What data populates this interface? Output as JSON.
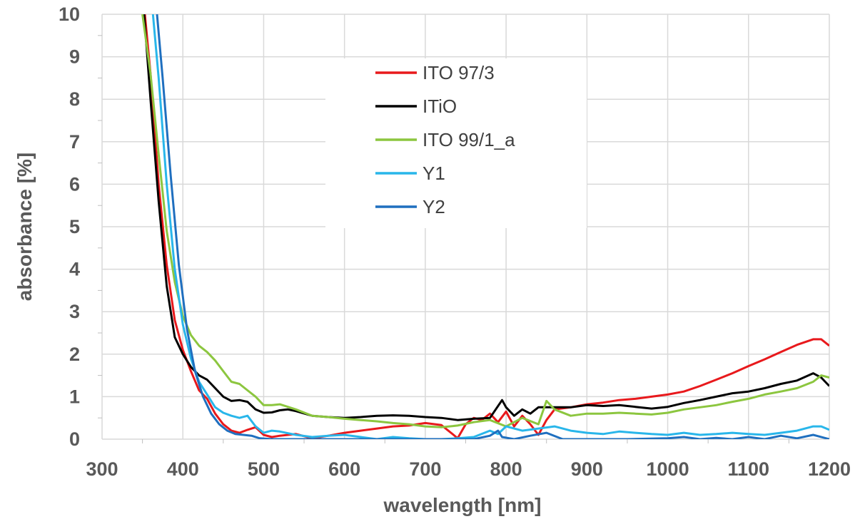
{
  "chart_data": {
    "type": "line",
    "title": "",
    "xlabel": "wavelength [nm]",
    "ylabel": "absorbance [%]",
    "xlim": [
      300,
      1200
    ],
    "ylim": [
      0,
      10
    ],
    "x_ticks": [
      "300",
      "400",
      "500",
      "600",
      "700",
      "800",
      "900",
      "1000",
      "1100",
      "1200"
    ],
    "y_ticks": [
      "0",
      "1",
      "2",
      "3",
      "4",
      "5",
      "6",
      "7",
      "8",
      "9",
      "10"
    ],
    "grid": true,
    "legend_position": "top-center",
    "series": [
      {
        "name": "ITO 97/3",
        "color": "#e8191c",
        "points": [
          [
            353,
            10
          ],
          [
            360,
            8.6
          ],
          [
            370,
            6.0
          ],
          [
            380,
            4.1
          ],
          [
            390,
            2.8
          ],
          [
            400,
            2.1
          ],
          [
            410,
            1.6
          ],
          [
            420,
            1.15
          ],
          [
            430,
            0.95
          ],
          [
            440,
            0.6
          ],
          [
            450,
            0.35
          ],
          [
            460,
            0.2
          ],
          [
            470,
            0.15
          ],
          [
            480,
            0.22
          ],
          [
            490,
            0.28
          ],
          [
            500,
            0.1
          ],
          [
            510,
            0.05
          ],
          [
            520,
            0.08
          ],
          [
            540,
            0.12
          ],
          [
            560,
            0.02
          ],
          [
            580,
            0.08
          ],
          [
            600,
            0.15
          ],
          [
            620,
            0.2
          ],
          [
            640,
            0.25
          ],
          [
            660,
            0.3
          ],
          [
            680,
            0.32
          ],
          [
            700,
            0.38
          ],
          [
            720,
            0.33
          ],
          [
            735,
            0.1
          ],
          [
            740,
            0.02
          ],
          [
            750,
            0.35
          ],
          [
            760,
            0.5
          ],
          [
            770,
            0.45
          ],
          [
            780,
            0.6
          ],
          [
            790,
            0.4
          ],
          [
            800,
            0.65
          ],
          [
            810,
            0.3
          ],
          [
            820,
            0.55
          ],
          [
            830,
            0.35
          ],
          [
            840,
            0.1
          ],
          [
            850,
            0.45
          ],
          [
            860,
            0.7
          ],
          [
            880,
            0.75
          ],
          [
            900,
            0.82
          ],
          [
            920,
            0.86
          ],
          [
            940,
            0.92
          ],
          [
            960,
            0.95
          ],
          [
            980,
            1.0
          ],
          [
            1000,
            1.05
          ],
          [
            1020,
            1.12
          ],
          [
            1040,
            1.25
          ],
          [
            1060,
            1.4
          ],
          [
            1080,
            1.55
          ],
          [
            1100,
            1.72
          ],
          [
            1120,
            1.88
          ],
          [
            1140,
            2.05
          ],
          [
            1160,
            2.22
          ],
          [
            1180,
            2.35
          ],
          [
            1190,
            2.35
          ],
          [
            1200,
            2.2
          ]
        ]
      },
      {
        "name": "ITiO",
        "color": "#000000",
        "points": [
          [
            352,
            10
          ],
          [
            360,
            8.0
          ],
          [
            370,
            5.6
          ],
          [
            380,
            3.6
          ],
          [
            390,
            2.4
          ],
          [
            400,
            2.0
          ],
          [
            410,
            1.7
          ],
          [
            420,
            1.5
          ],
          [
            430,
            1.4
          ],
          [
            440,
            1.2
          ],
          [
            450,
            1.0
          ],
          [
            460,
            0.9
          ],
          [
            470,
            0.92
          ],
          [
            480,
            0.88
          ],
          [
            490,
            0.7
          ],
          [
            500,
            0.62
          ],
          [
            510,
            0.63
          ],
          [
            520,
            0.68
          ],
          [
            530,
            0.7
          ],
          [
            540,
            0.66
          ],
          [
            560,
            0.55
          ],
          [
            580,
            0.52
          ],
          [
            600,
            0.5
          ],
          [
            620,
            0.52
          ],
          [
            640,
            0.55
          ],
          [
            660,
            0.56
          ],
          [
            680,
            0.55
          ],
          [
            700,
            0.52
          ],
          [
            720,
            0.5
          ],
          [
            740,
            0.45
          ],
          [
            760,
            0.48
          ],
          [
            780,
            0.5
          ],
          [
            795,
            0.92
          ],
          [
            800,
            0.75
          ],
          [
            810,
            0.55
          ],
          [
            820,
            0.7
          ],
          [
            830,
            0.6
          ],
          [
            840,
            0.75
          ],
          [
            860,
            0.75
          ],
          [
            880,
            0.75
          ],
          [
            900,
            0.8
          ],
          [
            920,
            0.78
          ],
          [
            940,
            0.8
          ],
          [
            960,
            0.76
          ],
          [
            980,
            0.72
          ],
          [
            1000,
            0.76
          ],
          [
            1020,
            0.85
          ],
          [
            1040,
            0.92
          ],
          [
            1060,
            1.0
          ],
          [
            1080,
            1.08
          ],
          [
            1100,
            1.12
          ],
          [
            1120,
            1.2
          ],
          [
            1140,
            1.3
          ],
          [
            1160,
            1.38
          ],
          [
            1180,
            1.55
          ],
          [
            1190,
            1.45
          ],
          [
            1200,
            1.25
          ]
        ]
      },
      {
        "name": "ITO 99/1_a",
        "color": "#8cc63f",
        "points": [
          [
            350,
            10
          ],
          [
            360,
            8.6
          ],
          [
            370,
            6.7
          ],
          [
            380,
            4.9
          ],
          [
            390,
            3.7
          ],
          [
            400,
            2.9
          ],
          [
            410,
            2.45
          ],
          [
            420,
            2.2
          ],
          [
            430,
            2.05
          ],
          [
            440,
            1.85
          ],
          [
            450,
            1.6
          ],
          [
            460,
            1.35
          ],
          [
            470,
            1.3
          ],
          [
            480,
            1.15
          ],
          [
            490,
            1.0
          ],
          [
            500,
            0.8
          ],
          [
            510,
            0.8
          ],
          [
            520,
            0.82
          ],
          [
            540,
            0.7
          ],
          [
            560,
            0.55
          ],
          [
            580,
            0.52
          ],
          [
            600,
            0.48
          ],
          [
            620,
            0.45
          ],
          [
            640,
            0.42
          ],
          [
            660,
            0.38
          ],
          [
            680,
            0.35
          ],
          [
            700,
            0.3
          ],
          [
            720,
            0.28
          ],
          [
            740,
            0.32
          ],
          [
            760,
            0.4
          ],
          [
            780,
            0.45
          ],
          [
            800,
            0.3
          ],
          [
            820,
            0.5
          ],
          [
            840,
            0.35
          ],
          [
            850,
            0.9
          ],
          [
            860,
            0.7
          ],
          [
            880,
            0.55
          ],
          [
            900,
            0.6
          ],
          [
            920,
            0.6
          ],
          [
            940,
            0.62
          ],
          [
            960,
            0.6
          ],
          [
            980,
            0.58
          ],
          [
            1000,
            0.62
          ],
          [
            1020,
            0.7
          ],
          [
            1040,
            0.75
          ],
          [
            1060,
            0.8
          ],
          [
            1080,
            0.88
          ],
          [
            1100,
            0.95
          ],
          [
            1120,
            1.05
          ],
          [
            1140,
            1.12
          ],
          [
            1160,
            1.2
          ],
          [
            1180,
            1.35
          ],
          [
            1190,
            1.5
          ],
          [
            1200,
            1.45
          ]
        ]
      },
      {
        "name": "Y1",
        "color": "#29b6ea",
        "points": [
          [
            363,
            10
          ],
          [
            370,
            8.5
          ],
          [
            380,
            6.0
          ],
          [
            390,
            4.0
          ],
          [
            400,
            2.7
          ],
          [
            410,
            1.9
          ],
          [
            420,
            1.35
          ],
          [
            430,
            1.05
          ],
          [
            440,
            0.75
          ],
          [
            450,
            0.62
          ],
          [
            460,
            0.55
          ],
          [
            470,
            0.5
          ],
          [
            480,
            0.55
          ],
          [
            490,
            0.3
          ],
          [
            500,
            0.15
          ],
          [
            510,
            0.2
          ],
          [
            520,
            0.18
          ],
          [
            540,
            0.1
          ],
          [
            560,
            0.05
          ],
          [
            580,
            0.08
          ],
          [
            600,
            0.1
          ],
          [
            620,
            0.05
          ],
          [
            640,
            0.0
          ],
          [
            660,
            0.05
          ],
          [
            680,
            0.02
          ],
          [
            700,
            0.0
          ],
          [
            720,
            0.0
          ],
          [
            740,
            0.02
          ],
          [
            760,
            0.05
          ],
          [
            780,
            0.2
          ],
          [
            790,
            0.12
          ],
          [
            800,
            0.3
          ],
          [
            820,
            0.2
          ],
          [
            840,
            0.25
          ],
          [
            860,
            0.3
          ],
          [
            880,
            0.2
          ],
          [
            900,
            0.15
          ],
          [
            920,
            0.12
          ],
          [
            940,
            0.18
          ],
          [
            960,
            0.15
          ],
          [
            980,
            0.12
          ],
          [
            1000,
            0.1
          ],
          [
            1020,
            0.15
          ],
          [
            1040,
            0.1
          ],
          [
            1060,
            0.12
          ],
          [
            1080,
            0.15
          ],
          [
            1100,
            0.12
          ],
          [
            1120,
            0.1
          ],
          [
            1140,
            0.15
          ],
          [
            1160,
            0.2
          ],
          [
            1180,
            0.3
          ],
          [
            1190,
            0.3
          ],
          [
            1200,
            0.22
          ]
        ]
      },
      {
        "name": "Y2",
        "color": "#1f6fbf",
        "points": [
          [
            368,
            10
          ],
          [
            375,
            8.5
          ],
          [
            385,
            6.2
          ],
          [
            395,
            4.1
          ],
          [
            405,
            2.6
          ],
          [
            415,
            1.6
          ],
          [
            425,
            1.0
          ],
          [
            435,
            0.6
          ],
          [
            445,
            0.35
          ],
          [
            455,
            0.2
          ],
          [
            465,
            0.12
          ],
          [
            475,
            0.1
          ],
          [
            485,
            0.08
          ],
          [
            495,
            0.02
          ],
          [
            510,
            0.0
          ],
          [
            600,
            0.0
          ],
          [
            700,
            0.0
          ],
          [
            760,
            0.0
          ],
          [
            780,
            0.08
          ],
          [
            790,
            0.2
          ],
          [
            795,
            0.05
          ],
          [
            810,
            0.0
          ],
          [
            830,
            0.08
          ],
          [
            850,
            0.15
          ],
          [
            870,
            0.0
          ],
          [
            900,
            0.0
          ],
          [
            950,
            0.0
          ],
          [
            1000,
            0.02
          ],
          [
            1020,
            0.05
          ],
          [
            1040,
            0.0
          ],
          [
            1060,
            0.03
          ],
          [
            1080,
            0.0
          ],
          [
            1100,
            0.05
          ],
          [
            1120,
            0.0
          ],
          [
            1140,
            0.08
          ],
          [
            1160,
            0.02
          ],
          [
            1180,
            0.1
          ],
          [
            1200,
            0.0
          ]
        ]
      }
    ]
  }
}
